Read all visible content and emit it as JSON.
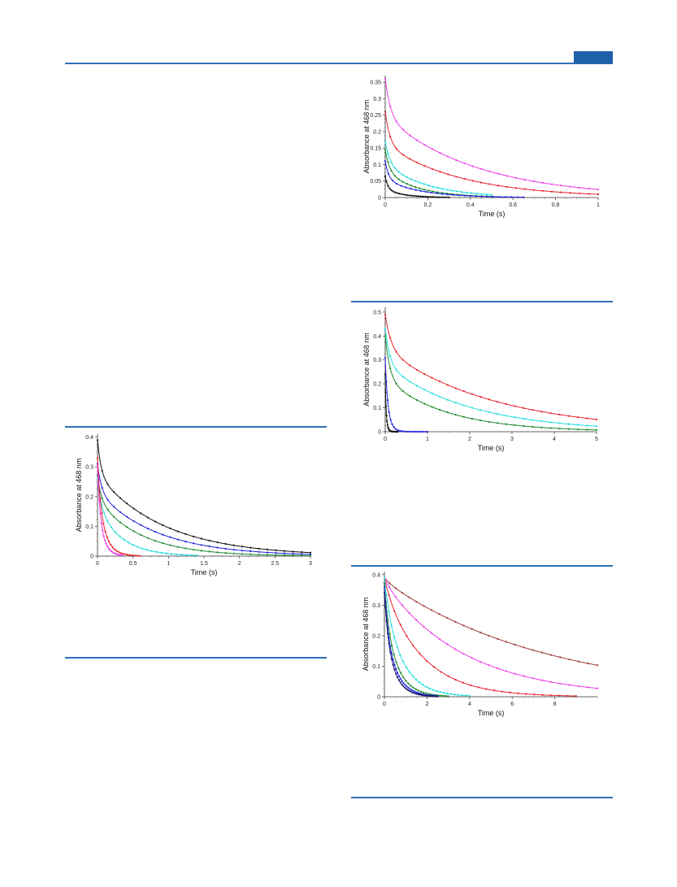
{
  "colors": {
    "rule": "#2f6fb8",
    "tab": "#1f5fa8",
    "black": "#111111",
    "red": "#e8232a",
    "magenta": "#ee3ee8",
    "blue": "#2222dd",
    "cyan": "#22dddd",
    "green": "#1a8a2a",
    "brown": "#a03a3a",
    "navy": "#1a1a6e"
  },
  "chart_data": [
    {
      "type": "line",
      "xlabel": "Time (s)",
      "ylabel": "Absorbance at 468 nm",
      "xlim": [
        0,
        1
      ],
      "ylim": [
        0,
        0.37
      ],
      "xticks": [
        0,
        0.2,
        0.4,
        0.6,
        0.8,
        1
      ],
      "yticks": [
        0,
        0.05,
        0.1,
        0.15,
        0.2,
        0.25,
        0.3,
        0.35
      ],
      "series": [
        {
          "color": "magenta",
          "a0": 0.36,
          "k1": 40,
          "w1": 0.32,
          "k2": 2.3,
          "tmax": 1.0,
          "markers": 26
        },
        {
          "color": "red",
          "a0": 0.26,
          "k1": 45,
          "w1": 0.38,
          "k2": 2.8,
          "tmax": 1.0,
          "markers": 26
        },
        {
          "color": "cyan",
          "a0": 0.17,
          "k1": 45,
          "w1": 0.4,
          "k2": 5.0,
          "tmax": 0.5,
          "markers": 24
        },
        {
          "color": "green",
          "a0": 0.145,
          "k1": 50,
          "w1": 0.45,
          "k2": 6.5,
          "tmax": 0.5,
          "markers": 24
        },
        {
          "color": "blue",
          "a0": 0.11,
          "k1": 60,
          "w1": 0.5,
          "k2": 6.0,
          "tmax": 0.65,
          "markers": 26
        },
        {
          "color": "black",
          "a0": 0.065,
          "k1": 80,
          "w1": 0.6,
          "k2": 12.0,
          "tmax": 0.3,
          "markers": 30
        }
      ]
    },
    {
      "type": "line",
      "xlabel": "Time (s)",
      "ylabel": "Absorbance at 468 nm",
      "xlim": [
        0,
        5
      ],
      "ylim": [
        0,
        0.52
      ],
      "xticks": [
        0,
        1,
        2,
        3,
        4,
        5
      ],
      "yticks": [
        0,
        0.1,
        0.2,
        0.3,
        0.4,
        0.5
      ],
      "series": [
        {
          "color": "red",
          "a0": 0.49,
          "k1": 7,
          "w1": 0.3,
          "k2": 0.38,
          "tmax": 5.0,
          "markers": 26
        },
        {
          "color": "cyan",
          "a0": 0.43,
          "k1": 9,
          "w1": 0.35,
          "k2": 0.5,
          "tmax": 5.0,
          "markers": 26
        },
        {
          "color": "green",
          "a0": 0.4,
          "k1": 9,
          "w1": 0.45,
          "k2": 0.68,
          "tmax": 5.0,
          "markers": 26
        },
        {
          "color": "blue",
          "a0": 0.31,
          "k1": 20,
          "w1": 0.5,
          "k2": 11.0,
          "tmax": 1.0,
          "markers": 24
        },
        {
          "color": "black",
          "a0": 0.24,
          "k1": 60,
          "w1": 0.5,
          "k2": 30.0,
          "tmax": 0.3,
          "markers": 22
        }
      ]
    },
    {
      "type": "line",
      "xlabel": "Time (s)",
      "ylabel": "Absorbance at 468 nm",
      "xlim": [
        0,
        3
      ],
      "ylim": [
        0,
        0.41
      ],
      "xticks": [
        0,
        0.5,
        1,
        1.5,
        2,
        2.5,
        3
      ],
      "yticks": [
        0,
        0.1,
        0.2,
        0.3,
        0.4
      ],
      "series": [
        {
          "color": "black",
          "a0": 0.39,
          "k1": 20,
          "w1": 0.3,
          "k2": 1.05,
          "tmax": 3.0,
          "markers": 28
        },
        {
          "color": "blue",
          "a0": 0.31,
          "k1": 18,
          "w1": 0.3,
          "k2": 1.2,
          "tmax": 3.0,
          "markers": 28
        },
        {
          "color": "green",
          "a0": 0.27,
          "k1": 18,
          "w1": 0.3,
          "k2": 1.6,
          "tmax": 3.0,
          "markers": 28
        },
        {
          "color": "cyan",
          "a0": 0.26,
          "k1": 18,
          "w1": 0.35,
          "k2": 3.0,
          "tmax": 1.4,
          "markers": 22
        },
        {
          "color": "red",
          "a0": 0.33,
          "k1": 25,
          "w1": 0.4,
          "k2": 9.0,
          "tmax": 0.6,
          "markers": 22
        },
        {
          "color": "magenta",
          "a0": 0.3,
          "k1": 30,
          "w1": 0.45,
          "k2": 12.0,
          "tmax": 0.35,
          "markers": 20
        }
      ]
    },
    {
      "type": "line",
      "xlabel": "Time (s)",
      "ylabel": "Absorbance at 468 nm",
      "xlim": [
        0,
        10
      ],
      "ylim": [
        0,
        0.41
      ],
      "xticks": [
        0,
        2,
        4,
        6,
        8
      ],
      "yticks": [
        0,
        0.1,
        0.2,
        0.3,
        0.4
      ],
      "series": [
        {
          "color": "brown",
          "a0": 0.39,
          "k1": 3,
          "w1": 0.03,
          "k2": 0.13,
          "tmax": 10.0,
          "markers": 26
        },
        {
          "color": "magenta",
          "a0": 0.39,
          "k1": 3,
          "w1": 0.05,
          "k2": 0.26,
          "tmax": 10.0,
          "markers": 26
        },
        {
          "color": "red",
          "a0": 0.39,
          "k1": 3,
          "w1": 0.1,
          "k2": 0.55,
          "tmax": 9.0,
          "markers": 26
        },
        {
          "color": "cyan",
          "a0": 0.39,
          "k1": 4,
          "w1": 0.2,
          "k2": 1.15,
          "tmax": 4.0,
          "markers": 26
        },
        {
          "color": "green",
          "a0": 0.37,
          "k1": 5,
          "w1": 0.3,
          "k2": 1.6,
          "tmax": 3.0,
          "markers": 26
        },
        {
          "color": "blue",
          "a0": 0.36,
          "k1": 6,
          "w1": 0.35,
          "k2": 1.85,
          "tmax": 2.5,
          "markers": 34
        },
        {
          "color": "navy",
          "a0": 0.34,
          "k1": 6,
          "w1": 0.35,
          "k2": 2.1,
          "tmax": 2.5,
          "markers": 34
        }
      ]
    }
  ]
}
